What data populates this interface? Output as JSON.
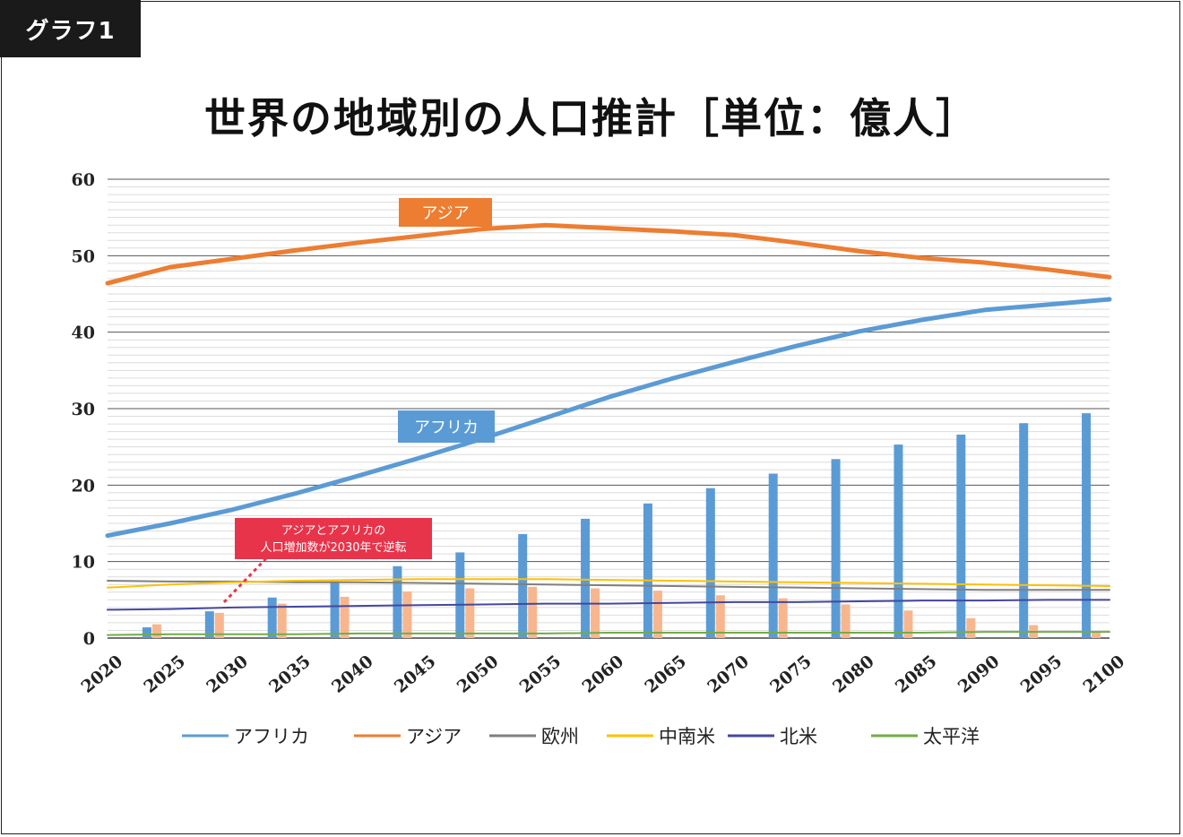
{
  "header": {
    "tag": "グラフ1"
  },
  "chart_data": {
    "type": "line",
    "title": "世界の地域別の人口推計［単位：億人］",
    "ylim": [
      0,
      60
    ],
    "yticks": [
      0,
      10,
      20,
      30,
      40,
      50,
      60
    ],
    "x_tick_labels": [
      "2020",
      "2025",
      "2030",
      "2035",
      "2040",
      "2045",
      "2050",
      "2055",
      "2060",
      "2065",
      "2070",
      "2075",
      "2080",
      "2085",
      "2090",
      "2095",
      "2100"
    ],
    "x": [
      2020,
      2025,
      2030,
      2035,
      2040,
      2045,
      2050,
      2055,
      2060,
      2065,
      2070,
      2075,
      2080,
      2085,
      2090,
      2095,
      2100
    ],
    "grid": true,
    "legend_position": "bottom",
    "series": [
      {
        "name": "アフリカ",
        "color": "#5b9bd5",
        "values": [
          13.4,
          15.0,
          16.8,
          18.9,
          21.2,
          23.6,
          26.1,
          28.8,
          31.5,
          33.9,
          36.1,
          38.2,
          40.1,
          41.6,
          42.9,
          43.6,
          44.3
        ]
      },
      {
        "name": "アジア",
        "color": "#ed7d31",
        "values": [
          46.4,
          48.5,
          49.6,
          50.7,
          51.7,
          52.6,
          53.5,
          54.0,
          53.6,
          53.2,
          52.7,
          51.7,
          50.6,
          49.7,
          49.1,
          48.2,
          47.2
        ]
      },
      {
        "name": "欧州",
        "color": "#7f7f7f",
        "values": [
          7.5,
          7.4,
          7.4,
          7.3,
          7.3,
          7.2,
          7.1,
          7.0,
          6.9,
          6.8,
          6.7,
          6.6,
          6.5,
          6.4,
          6.3,
          6.3,
          6.3
        ]
      },
      {
        "name": "中南米",
        "color": "#ffc000",
        "values": [
          6.6,
          7.0,
          7.3,
          7.5,
          7.6,
          7.7,
          7.7,
          7.7,
          7.6,
          7.5,
          7.4,
          7.3,
          7.2,
          7.1,
          7.0,
          6.9,
          6.8
        ]
      },
      {
        "name": "北米",
        "color": "#44479f",
        "values": [
          3.7,
          3.8,
          4.0,
          4.1,
          4.2,
          4.3,
          4.4,
          4.5,
          4.5,
          4.6,
          4.7,
          4.7,
          4.8,
          4.9,
          4.9,
          5.0,
          5.0
        ]
      },
      {
        "name": "太平洋",
        "color": "#70ad47",
        "values": [
          0.4,
          0.5,
          0.5,
          0.5,
          0.6,
          0.6,
          0.6,
          0.6,
          0.7,
          0.7,
          0.7,
          0.7,
          0.7,
          0.7,
          0.8,
          0.8,
          0.8
        ]
      }
    ],
    "bars": [
      {
        "color": "#5b9bd5",
        "values": [
          1.4,
          3.5,
          5.3,
          7.4,
          9.4,
          11.2,
          13.6,
          15.6,
          17.6,
          19.6,
          21.5,
          23.4,
          25.3,
          26.6,
          28.1,
          29.4
        ]
      },
      {
        "color": "#f8b68f",
        "values": [
          1.8,
          3.3,
          4.5,
          5.4,
          6.1,
          6.5,
          6.7,
          6.5,
          6.2,
          5.6,
          5.2,
          4.4,
          3.6,
          2.6,
          1.7,
          0.7
        ]
      }
    ],
    "annotations": {
      "asia_label": "アジア",
      "africa_label": "アフリカ",
      "note_line1": "アジアとアフリカの",
      "note_line2": "人口増加数が2030年で逆転"
    }
  }
}
